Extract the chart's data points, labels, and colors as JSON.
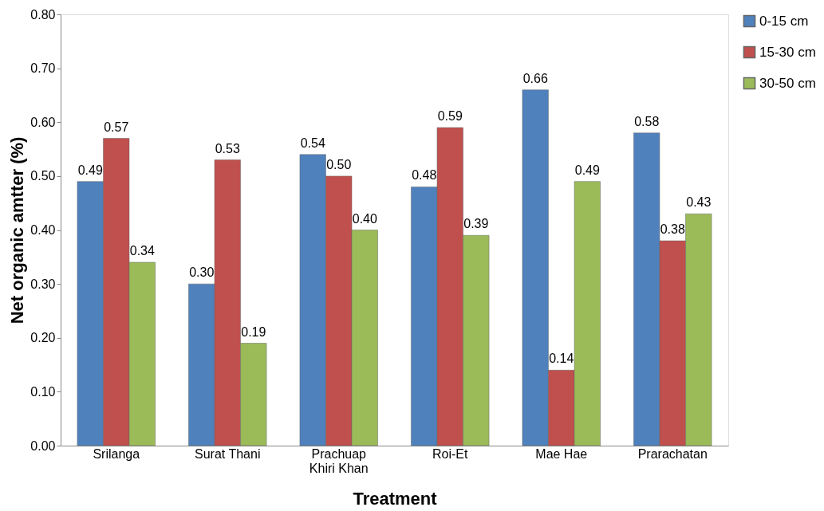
{
  "chart_data": {
    "type": "bar",
    "xlabel": "Treatment",
    "ylabel": "Net organic amtter (%)",
    "categories": [
      "Srilanga",
      "Surat Thani",
      "Prachuap Khiri Khan",
      "Roi-Et",
      "Mae Hae",
      "Prarachatan"
    ],
    "series": [
      {
        "name": "0-15 cm",
        "color": "#4f81bd",
        "values": [
          0.49,
          0.3,
          0.54,
          0.48,
          0.66,
          0.58
        ],
        "value_labels": [
          "0.49",
          "0.30",
          "0.54",
          "0.48",
          "0.66",
          "0.58"
        ]
      },
      {
        "name": "15-30 cm",
        "color": "#c0504d",
        "values": [
          0.57,
          0.53,
          0.5,
          0.59,
          0.14,
          0.38
        ],
        "value_labels": [
          "0.57",
          "0.53",
          "0.50",
          "0.59",
          "0.14",
          "0.38"
        ]
      },
      {
        "name": "30-50 cm",
        "color": "#9bbb59",
        "values": [
          0.34,
          0.19,
          0.4,
          0.39,
          0.49,
          0.43
        ],
        "value_labels": [
          "0.34",
          "0.19",
          "0.40",
          "0.39",
          "0.49",
          "0.43"
        ]
      }
    ],
    "ylim": [
      0,
      0.8
    ],
    "yticks": [
      {
        "value": 0,
        "label": "0.00"
      },
      {
        "value": 0.1,
        "label": "0.10"
      },
      {
        "value": 0.2,
        "label": "0.20"
      },
      {
        "value": 0.3,
        "label": "0.30"
      },
      {
        "value": 0.4,
        "label": "0.40"
      },
      {
        "value": 0.5,
        "label": "0.50"
      },
      {
        "value": 0.6,
        "label": "0.60"
      },
      {
        "value": 0.7,
        "label": "0.70"
      },
      {
        "value": 0.8,
        "label": "0.80"
      }
    ],
    "grid": false,
    "legend": "right"
  }
}
